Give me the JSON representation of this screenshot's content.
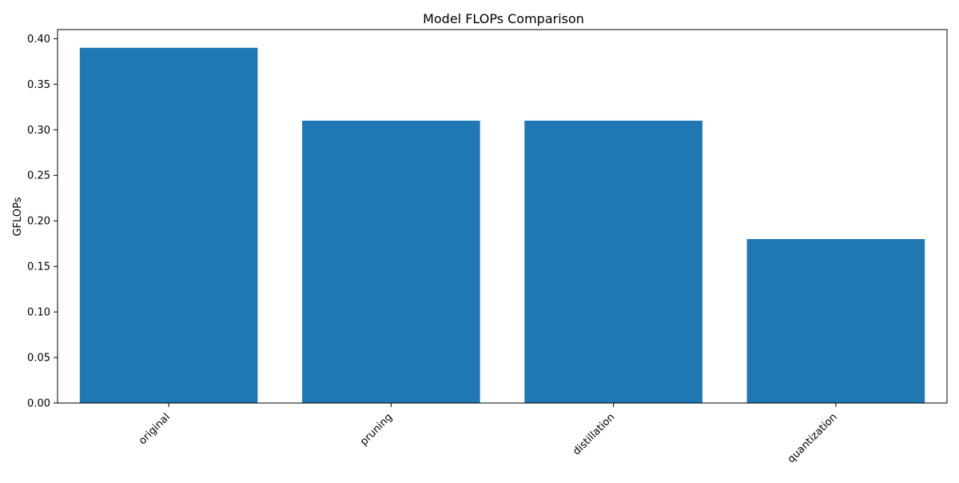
{
  "chart_data": {
    "type": "bar",
    "title": "Model FLOPs Comparison",
    "xlabel": "",
    "ylabel": "GFLOPs",
    "categories": [
      "original",
      "pruning",
      "distillation",
      "quantization"
    ],
    "values": [
      0.39,
      0.31,
      0.31,
      0.18
    ],
    "ylim": [
      0,
      0.41
    ],
    "yticks": [
      "0.00",
      "0.05",
      "0.10",
      "0.15",
      "0.20",
      "0.25",
      "0.30",
      "0.35",
      "0.40"
    ],
    "bar_color": "#1f77b4",
    "grid": false,
    "legend": "none"
  }
}
